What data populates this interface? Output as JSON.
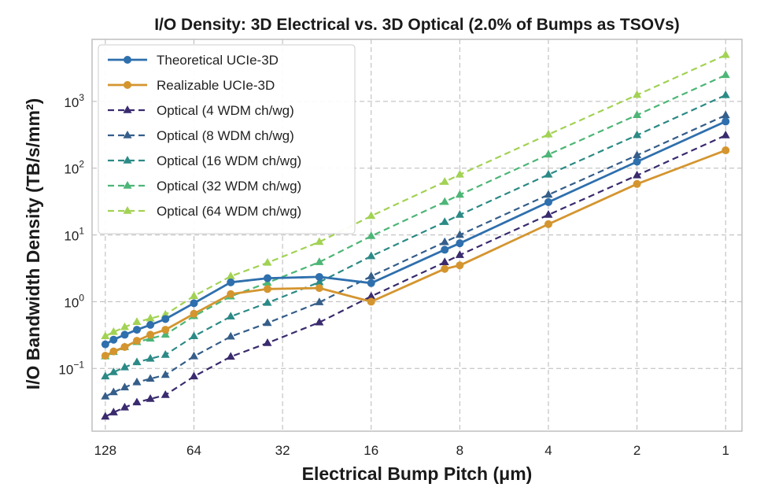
{
  "chart_data": {
    "type": "line",
    "title": "I/O Density: 3D Electrical vs. 3D Optical (2.0% of Bumps as TSOVs)",
    "xlabel": "Electrical Bump Pitch (μm)",
    "ylabel": "I/O Bandwidth Density (TB/s/mm²)",
    "x_scale": "log2-reversed",
    "y_scale": "log10",
    "xlim": [
      142,
      0.88
    ],
    "ylim": [
      0.0115,
      8500
    ],
    "x_ticks": [
      {
        "value": 128,
        "label": "128"
      },
      {
        "value": 64,
        "label": "64"
      },
      {
        "value": 32,
        "label": "32"
      },
      {
        "value": 16,
        "label": "16"
      },
      {
        "value": 8,
        "label": "8"
      },
      {
        "value": 4,
        "label": "4"
      },
      {
        "value": 2,
        "label": "2"
      },
      {
        "value": 1,
        "label": "1"
      }
    ],
    "y_ticks": [
      {
        "value": 0.1,
        "base": "10",
        "exp": "−1"
      },
      {
        "value": 1,
        "base": "10",
        "exp": "0"
      },
      {
        "value": 10,
        "base": "10",
        "exp": "1"
      },
      {
        "value": 100,
        "base": "10",
        "exp": "2"
      },
      {
        "value": 1000,
        "base": "10",
        "exp": "3"
      }
    ],
    "grid": true,
    "legend_position": "top-left",
    "series": [
      {
        "name": "Theoretical UCIe-3D",
        "color": "#2e6fad",
        "style": "solid",
        "marker": "circle",
        "x": [
          128,
          120,
          110,
          100,
          90,
          80,
          64,
          48,
          36,
          24,
          16,
          9,
          8,
          4,
          2,
          1
        ],
        "y": [
          0.23,
          0.27,
          0.32,
          0.38,
          0.45,
          0.55,
          0.95,
          1.95,
          2.25,
          2.35,
          1.9,
          6,
          7.5,
          31,
          125,
          500
        ]
      },
      {
        "name": "Realizable UCIe-3D",
        "color": "#d4952f",
        "style": "solid",
        "marker": "circle",
        "x": [
          128,
          120,
          110,
          100,
          90,
          80,
          64,
          48,
          36,
          24,
          16,
          9,
          8,
          4,
          2,
          1
        ],
        "y": [
          0.155,
          0.18,
          0.21,
          0.26,
          0.32,
          0.38,
          0.66,
          1.3,
          1.55,
          1.6,
          1.0,
          3.1,
          3.5,
          14.5,
          58,
          185
        ]
      },
      {
        "name": "Optical (4 WDM ch/wg)",
        "color": "#3a2a6e",
        "style": "dashed",
        "marker": "triangle",
        "x": [
          128,
          120,
          110,
          100,
          90,
          80,
          64,
          48,
          36,
          24,
          16,
          9,
          8,
          4,
          2,
          1
        ],
        "y": [
          0.019,
          0.022,
          0.026,
          0.031,
          0.035,
          0.04,
          0.076,
          0.15,
          0.24,
          0.49,
          1.2,
          3.9,
          5,
          20,
          78,
          310
        ]
      },
      {
        "name": "Optical (8 WDM ch/wg)",
        "color": "#355e8a",
        "style": "dashed",
        "marker": "triangle",
        "x": [
          128,
          120,
          110,
          100,
          90,
          80,
          64,
          48,
          36,
          24,
          16,
          9,
          8,
          4,
          2,
          1
        ],
        "y": [
          0.038,
          0.044,
          0.052,
          0.062,
          0.07,
          0.08,
          0.152,
          0.3,
          0.48,
          0.98,
          2.4,
          7.8,
          10,
          40,
          156,
          620
        ]
      },
      {
        "name": "Optical (16 WDM ch/wg)",
        "color": "#2b8a86",
        "style": "dashed",
        "marker": "triangle",
        "x": [
          128,
          120,
          110,
          100,
          90,
          80,
          64,
          48,
          36,
          24,
          16,
          9,
          8,
          4,
          2,
          1
        ],
        "y": [
          0.076,
          0.088,
          0.104,
          0.124,
          0.14,
          0.16,
          0.304,
          0.6,
          0.96,
          1.96,
          4.8,
          15.6,
          20,
          80,
          312,
          1240
        ]
      },
      {
        "name": "Optical (32 WDM ch/wg)",
        "color": "#4db676",
        "style": "dashed",
        "marker": "triangle",
        "x": [
          128,
          120,
          110,
          100,
          90,
          80,
          64,
          48,
          36,
          24,
          16,
          9,
          8,
          4,
          2,
          1
        ],
        "y": [
          0.152,
          0.176,
          0.208,
          0.248,
          0.28,
          0.32,
          0.608,
          1.2,
          1.92,
          3.92,
          9.6,
          31.2,
          40,
          160,
          624,
          2480
        ]
      },
      {
        "name": "Optical (64 WDM ch/wg)",
        "color": "#a2d253",
        "style": "dashed",
        "marker": "triangle",
        "x": [
          128,
          120,
          110,
          100,
          90,
          80,
          64,
          48,
          36,
          24,
          16,
          9,
          8,
          4,
          2,
          1
        ],
        "y": [
          0.304,
          0.352,
          0.416,
          0.496,
          0.56,
          0.64,
          1.216,
          2.4,
          3.84,
          7.84,
          19.2,
          62.4,
          80,
          320,
          1248,
          4960
        ]
      }
    ]
  }
}
